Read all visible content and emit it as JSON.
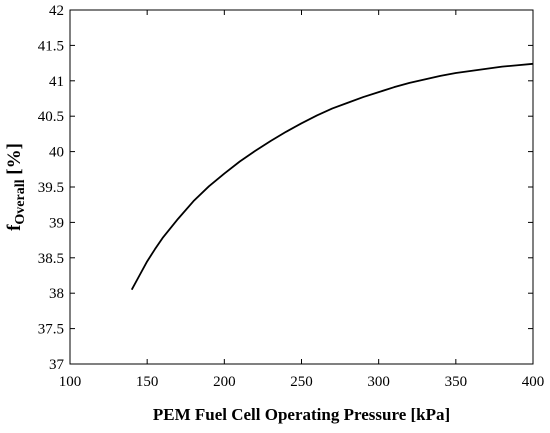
{
  "chart_data": {
    "type": "line",
    "title": "",
    "xlabel": "PEM Fuel Cell Operating Pressure [kPa]",
    "ylabel": {
      "main": "f",
      "subscript": "Overall",
      "unit": " [%]"
    },
    "xlim": [
      100,
      400
    ],
    "ylim": [
      37,
      42
    ],
    "xticks": [
      100,
      150,
      200,
      250,
      300,
      350,
      400
    ],
    "yticks": [
      37,
      37.5,
      38,
      38.5,
      39,
      39.5,
      40,
      40.5,
      41,
      41.5,
      42
    ],
    "grid": false,
    "legend": "none",
    "line_color": "#000000",
    "series": [
      {
        "x": [
          140,
          145,
          150,
          155,
          160,
          170,
          180,
          190,
          200,
          210,
          220,
          230,
          240,
          250,
          260,
          270,
          280,
          290,
          300,
          310,
          320,
          330,
          340,
          350,
          360,
          370,
          380,
          390,
          400
        ],
        "y": [
          38.05,
          38.25,
          38.45,
          38.62,
          38.78,
          39.05,
          39.3,
          39.51,
          39.69,
          39.86,
          40.01,
          40.15,
          40.28,
          40.4,
          40.51,
          40.61,
          40.69,
          40.77,
          40.84,
          40.91,
          40.97,
          41.02,
          41.07,
          41.11,
          41.14,
          41.17,
          41.2,
          41.22,
          41.24
        ]
      }
    ]
  }
}
